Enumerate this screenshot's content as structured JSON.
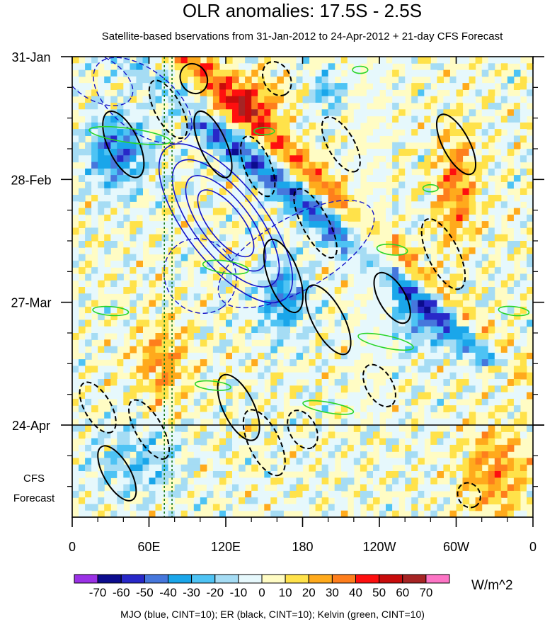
{
  "chart_data": {
    "type": "heatmap",
    "title": "OLR anomalies: 17.5S - 2.5S",
    "subtitle": "Satellite-based bservations from 31-Jan-2012 to 24-Apr-2012 + 21-day CFS Forecast",
    "x_ticks": [
      {
        "lon": 0,
        "label": "0"
      },
      {
        "lon": 60,
        "label": "60E"
      },
      {
        "lon": 120,
        "label": "120E"
      },
      {
        "lon": 180,
        "label": "180"
      },
      {
        "lon": 240,
        "label": "120W"
      },
      {
        "lon": 300,
        "label": "60W"
      },
      {
        "lon": 360,
        "label": "0"
      }
    ],
    "xlim": [
      0,
      360
    ],
    "y_ticks": [
      {
        "day": 0,
        "label": "31-Jan"
      },
      {
        "day": 28,
        "label": "28-Feb"
      },
      {
        "day": 56,
        "label": "27-Mar"
      },
      {
        "day": 84,
        "label": "24-Apr"
      }
    ],
    "ylim_days": [
      0,
      105
    ],
    "forecast_start_day": 84,
    "forecast_label_line1": "CFS",
    "forecast_label_line2": "Forecast",
    "colorbar": {
      "levels": [
        "-70",
        "-60",
        "-50",
        "-40",
        "-30",
        "-20",
        "-10",
        "0",
        "10",
        "20",
        "30",
        "40",
        "50",
        "60",
        "70"
      ],
      "colors": [
        "#9b31e6",
        "#0c0c8e",
        "#2828c8",
        "#4677dc",
        "#1aa6ea",
        "#4ec3f4",
        "#a5dcf4",
        "#e6f8fc",
        "#fffcc4",
        "#ffe24a",
        "#ffaa1c",
        "#fe7e1c",
        "#fe0f0f",
        "#c80b0b",
        "#a62424",
        "#fd74c5"
      ],
      "units": "W/m^2"
    },
    "mjo_lon_markers": [
      72,
      78
    ],
    "contour_colors": {
      "mjo": "#1414c8",
      "er": "#000000",
      "kelvin": "#2ad52a"
    },
    "footer": "MJO (blue, CINT=10); ER (black, CINT=10); Kelvin (green, CINT=10)"
  }
}
